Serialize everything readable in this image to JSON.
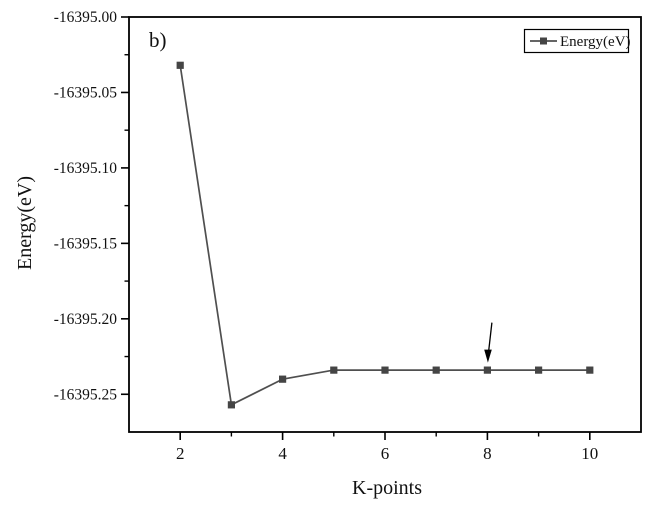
{
  "panel_label": "b)",
  "chart_data": {
    "type": "line",
    "title": "",
    "xlabel": "K-points",
    "ylabel": "Energy(eV)",
    "legend": {
      "label": "Energy(eV)",
      "position": "top-right",
      "marker": "filled-square"
    },
    "x": [
      2,
      3,
      4,
      5,
      6,
      7,
      8,
      9,
      10
    ],
    "series": [
      {
        "name": "Energy(eV)",
        "values": [
          -16395.032,
          -16395.257,
          -16395.24,
          -16395.234,
          -16395.234,
          -16395.234,
          -16395.234,
          -16395.234,
          -16395.234
        ]
      }
    ],
    "xlim": [
      1,
      11
    ],
    "ylim": [
      -16395.275,
      -16395.0
    ],
    "x_ticks": {
      "major": [
        {
          "value": 2,
          "label": "2"
        },
        {
          "value": 4,
          "label": "4"
        },
        {
          "value": 6,
          "label": "6"
        },
        {
          "value": 8,
          "label": "8"
        },
        {
          "value": 10,
          "label": "10"
        }
      ],
      "minor": [
        3,
        5,
        7,
        9
      ]
    },
    "y_ticks": {
      "major": [
        {
          "value": -16395.0,
          "label": "-16395.00"
        },
        {
          "value": -16395.05,
          "label": "-16395.05"
        },
        {
          "value": -16395.1,
          "label": "-16395.10"
        },
        {
          "value": -16395.15,
          "label": "-16395.15"
        },
        {
          "value": -16395.2,
          "label": "-16395.20"
        },
        {
          "value": -16395.25,
          "label": "-16395.25"
        }
      ],
      "minor": [
        -16395.025,
        -16395.075,
        -16395.125,
        -16395.175,
        -16395.225
      ]
    },
    "annotations": [
      {
        "type": "arrow-down",
        "points_to_x": 8,
        "points_to_series": "Energy(eV)"
      }
    ],
    "grid": false,
    "marker_style": "filled-square",
    "colors": {
      "line": "#4f4f4f",
      "marker": "#454545",
      "axis": "#000000",
      "annotation": "#000000",
      "text": "#111111",
      "background": "#ffffff"
    }
  }
}
